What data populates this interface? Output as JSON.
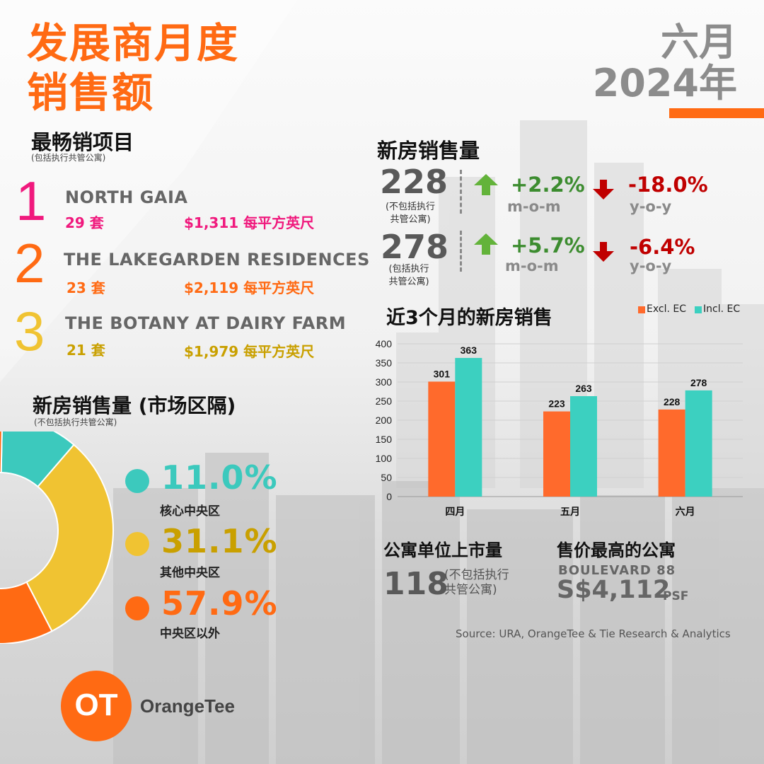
{
  "header": {
    "title_line1": "发展商月度",
    "title_line2": "销售额",
    "month": "六月",
    "year": "2024年"
  },
  "top_projects": {
    "heading": "最畅销项目",
    "note": "(包括执行共管公寓)",
    "items": [
      {
        "rank": "1",
        "name": "NORTH GAIA",
        "units": "29 套",
        "price": "$1,311 每平方英尺",
        "color": "#f0197d"
      },
      {
        "rank": "2",
        "name": "THE LAKEGARDEN RESIDENCES",
        "units": "23 套",
        "price": "$2,119 每平方英尺",
        "color": "#ff6a13"
      },
      {
        "rank": "3",
        "name": "THE BOTANY AT DAIRY FARM",
        "units": "21 套",
        "price": "$1,979 每平方英尺",
        "color": "#c9a000"
      }
    ]
  },
  "new_sales": {
    "heading": "新房销售量",
    "rows": [
      {
        "value": "228",
        "note": "(不包括执行\n共管公寓)",
        "mom": "+2.2%",
        "mom_label": "m-o-m",
        "yoy": "-18.0%",
        "yoy_label": "y-o-y"
      },
      {
        "value": "278",
        "note": "(包括执行\n共管公寓)",
        "mom": "+5.7%",
        "mom_label": "m-o-m",
        "yoy": "-6.4%",
        "yoy_label": "y-o-y"
      }
    ]
  },
  "segments": {
    "heading": "新房销售量 (市场区隔)",
    "note": "(不包括执行共管公寓)",
    "items": [
      {
        "pct": "11.0%",
        "label": "核心中央区",
        "value": 11.0,
        "color": "#3cc9bd"
      },
      {
        "pct": "31.1%",
        "label": "其他中央区",
        "value": 31.1,
        "color": "#f0c332"
      },
      {
        "pct": "57.9%",
        "label": "中央区以外",
        "value": 57.9,
        "color": "#ff6a13"
      }
    ]
  },
  "chart_data": {
    "type": "bar",
    "title": "近3个月的新房销售",
    "categories": [
      "四月",
      "五月",
      "六月"
    ],
    "series": [
      {
        "name": "Excl. EC",
        "values": [
          301,
          223,
          228
        ],
        "color": "#ff6a2c"
      },
      {
        "name": "Incl. EC",
        "values": [
          363,
          263,
          278
        ],
        "color": "#3cd0c0"
      }
    ],
    "ylim": [
      0,
      400
    ],
    "yticks": [
      "0",
      "50",
      "100",
      "150",
      "200",
      "250",
      "300",
      "350",
      "400"
    ],
    "grid": true,
    "legend": "top-right"
  },
  "launches": {
    "heading": "公寓单位上市量",
    "value": "118",
    "note": "(不包括执行\n共管公寓)"
  },
  "top_price": {
    "heading": "售价最高的公寓",
    "project": "BOULEVARD 88",
    "price": "S$4,112",
    "unit": "PSF"
  },
  "source": "Source: URA, OrangeTee & Tie Research & Analytics",
  "logo": {
    "mark": "OT",
    "name": "OrangeTee"
  }
}
